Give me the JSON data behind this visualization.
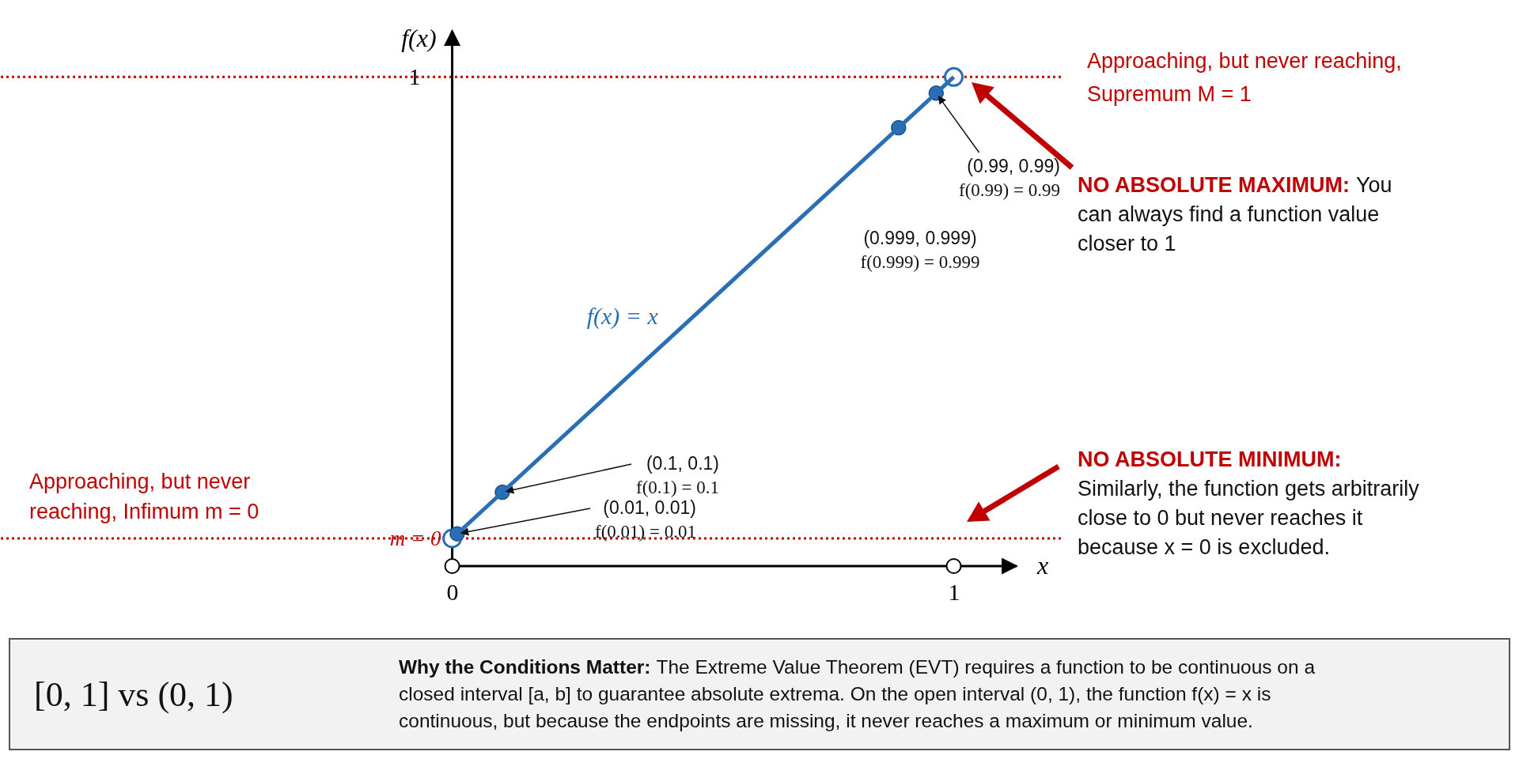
{
  "chart_data": {
    "type": "line",
    "xlabel": "x",
    "ylabel": "f(x)",
    "xlim": [
      -0.9,
      1.22
    ],
    "ylim": [
      -0.06,
      1.1
    ],
    "xticks": [
      0,
      1
    ],
    "yticks": [
      {
        "value": 0,
        "label": "m = 0"
      },
      1
    ],
    "line_style": "solid",
    "series": [
      {
        "name": "f(x) = x",
        "color": "#2a6fb5",
        "x": [
          0,
          1
        ],
        "values": [
          0,
          1
        ]
      },
      {
        "type": "scatter",
        "color": "#2a6fb5",
        "x": [
          0.01,
          0.1,
          0.89,
          0.965
        ],
        "values": [
          0.01,
          0.1,
          0.89,
          0.965
        ]
      },
      {
        "type": "scatter",
        "color": "#ffffff",
        "x": [
          0,
          1
        ],
        "values": [
          0,
          1
        ]
      }
    ],
    "ref_lines": [
      {
        "axis": "y",
        "value": 1,
        "label": "Approaching, but never reaching,\nSupremum M = 1",
        "color": "#c00000",
        "line_style": "dotted"
      },
      {
        "axis": "y",
        "value": 0,
        "color": "#c00000",
        "line_style": "dotted"
      }
    ],
    "annotations": [
      {
        "text": "(0.01, 0.01)\nf(0.01) = 0.01",
        "x": 0.01,
        "y": 0.01
      },
      {
        "text": "(0.1, 0.1)\nf(0.1) = 0.1",
        "x": 0.1,
        "y": 0.1
      },
      {
        "text": "(0.99, 0.99)\nf(0.99) = 0.99",
        "x": 0.965,
        "y": 0.965
      },
      "(0.999, 0.999)\nf(0.999) = 0.999",
      "Approaching, but never\nreaching, Infimum m = 0",
      "NO ABSOLUTE MAXIMUM:",
      "You\ncan always find a function value\ncloser to 1",
      "NO ABSOLUTE MINIMUM:",
      "Similarly, the function gets arbitrarily\nclose to 0 but never reaches it\nbecause x = 0 is excluded.",
      "[0, 1] vs (0, 1)",
      "Why the Conditions Matter:",
      "The Extreme Value Theorem (EVT) requires a function to be continuous on a\nclosed interval [a, b] to guarantee absolute extrema. On the open interval (0, 1), the function f(x) = x is\ncontinuous, but because the endpoints are missing, it never reaches a maximum or minimum value."
    ]
  }
}
